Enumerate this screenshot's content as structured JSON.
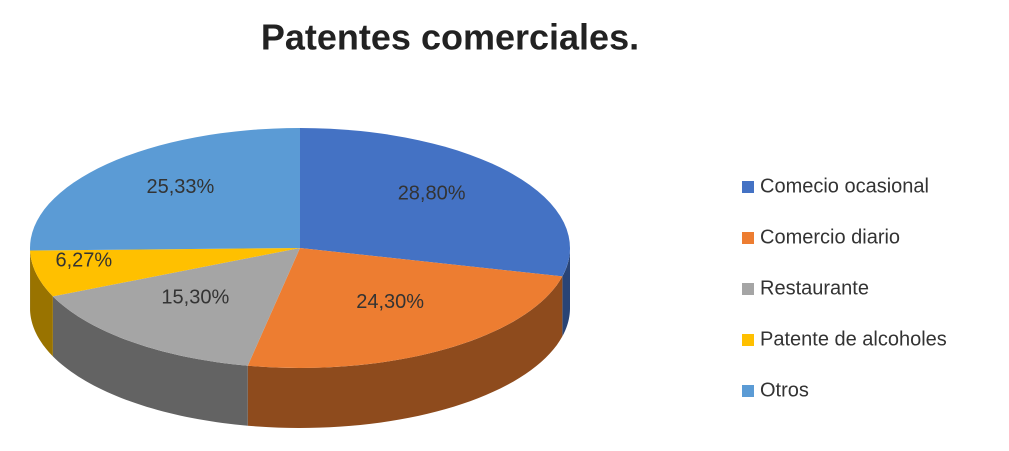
{
  "chart_data": {
    "type": "pie",
    "title": "Patentes comerciales.",
    "categories": [
      "Comecio ocasional",
      "Comercio diario",
      "Restaurante",
      "Patente de alcoholes",
      "Otros"
    ],
    "values": [
      28.8,
      24.3,
      15.3,
      6.27,
      25.33
    ],
    "value_labels": [
      "28,80%",
      "24,30%",
      "15,30%",
      "6,27%",
      "25,33%"
    ],
    "colors": [
      "#4472c4",
      "#ed7d31",
      "#a5a5a5",
      "#ffc000",
      "#5b9bd5"
    ],
    "legend": "right"
  }
}
